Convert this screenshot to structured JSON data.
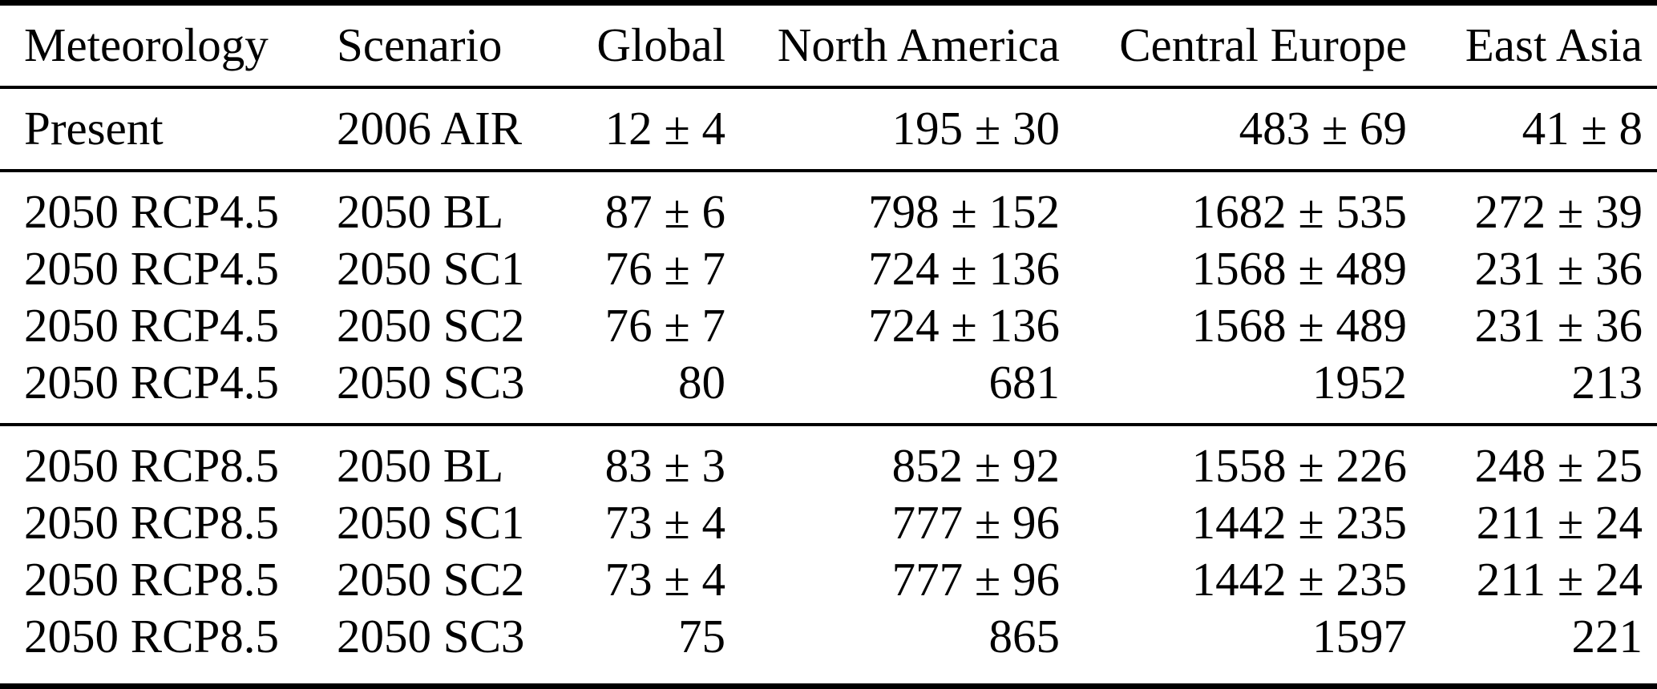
{
  "table": {
    "description": "Scientific paper results table with meteorology scenarios and regional values (mean ± uncertainty)",
    "colors": {
      "text": "#000000",
      "background": "#ffffff",
      "rule": "#000000"
    },
    "columns": [
      {
        "label": "Meteorology",
        "align": "left"
      },
      {
        "label": "Scenario",
        "align": "left"
      },
      {
        "label": "Global",
        "align": "right"
      },
      {
        "label": "North America",
        "align": "right"
      },
      {
        "label": "Central Europe",
        "align": "right"
      },
      {
        "label": "East Asia",
        "align": "right"
      }
    ],
    "groups": [
      {
        "name": "present",
        "rows": [
          [
            "Present",
            "2006 AIR",
            "12 ± 4",
            "195 ± 30",
            "483 ± 69",
            "41 ± 8"
          ]
        ]
      },
      {
        "name": "rcp45",
        "rows": [
          [
            "2050 RCP4.5",
            "2050 BL",
            "87 ± 6",
            "798 ± 152",
            "1682 ± 535",
            "272 ± 39"
          ],
          [
            "2050 RCP4.5",
            "2050 SC1",
            "76 ± 7",
            "724 ± 136",
            "1568 ± 489",
            "231 ± 36"
          ],
          [
            "2050 RCP4.5",
            "2050 SC2",
            "76 ± 7",
            "724 ± 136",
            "1568 ± 489",
            "231 ± 36"
          ],
          [
            "2050 RCP4.5",
            "2050 SC3",
            "80",
            "681",
            "1952",
            "213"
          ]
        ]
      },
      {
        "name": "rcp85",
        "rows": [
          [
            "2050 RCP8.5",
            "2050 BL",
            "83 ± 3",
            "852 ± 92",
            "1558 ± 226",
            "248 ± 25"
          ],
          [
            "2050 RCP8.5",
            "2050 SC1",
            "73 ± 4",
            "777 ± 96",
            "1442 ± 235",
            "211 ± 24"
          ],
          [
            "2050 RCP8.5",
            "2050 SC2",
            "73 ± 4",
            "777 ± 96",
            "1442 ± 235",
            "211 ± 24"
          ],
          [
            "2050 RCP8.5",
            "2050 SC3",
            "75",
            "865",
            "1597",
            "221"
          ]
        ]
      }
    ]
  }
}
